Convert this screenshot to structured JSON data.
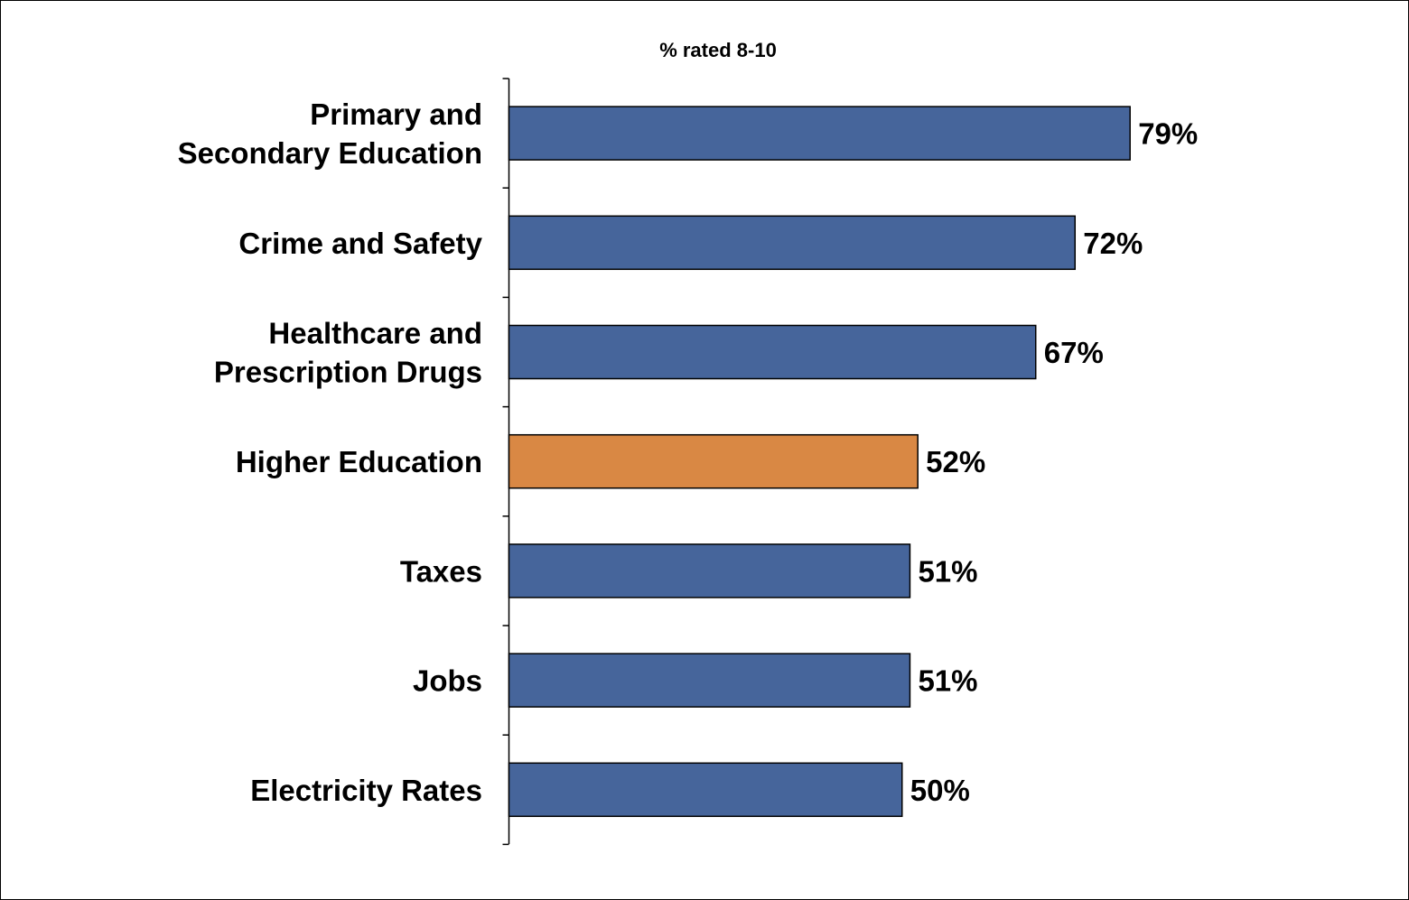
{
  "chart_data": {
    "type": "bar",
    "orientation": "horizontal",
    "title": "% rated 8-10",
    "categories": [
      "Primary and Secondary Education",
      "Crime and Safety",
      "Healthcare and Prescription Drugs",
      "Higher Education",
      "Taxes",
      "Jobs",
      "Electricity Rates"
    ],
    "category_label_lines": [
      [
        "Primary and",
        "Secondary Education"
      ],
      [
        "Crime and Safety"
      ],
      [
        "Healthcare and",
        "Prescription Drugs"
      ],
      [
        "Higher Education"
      ],
      [
        "Taxes"
      ],
      [
        "Jobs"
      ],
      [
        "Electricity Rates"
      ]
    ],
    "values": [
      79,
      72,
      67,
      52,
      51,
      51,
      50
    ],
    "value_labels": [
      "79%",
      "72%",
      "67%",
      "52%",
      "51%",
      "51%",
      "50%"
    ],
    "highlight_index": 3,
    "colors": {
      "default_bar": "#46659B",
      "highlight_bar": "#D98844",
      "bar_outline": "#000000"
    },
    "grid": false,
    "legend": "none",
    "xlim": [
      0,
      100
    ]
  }
}
